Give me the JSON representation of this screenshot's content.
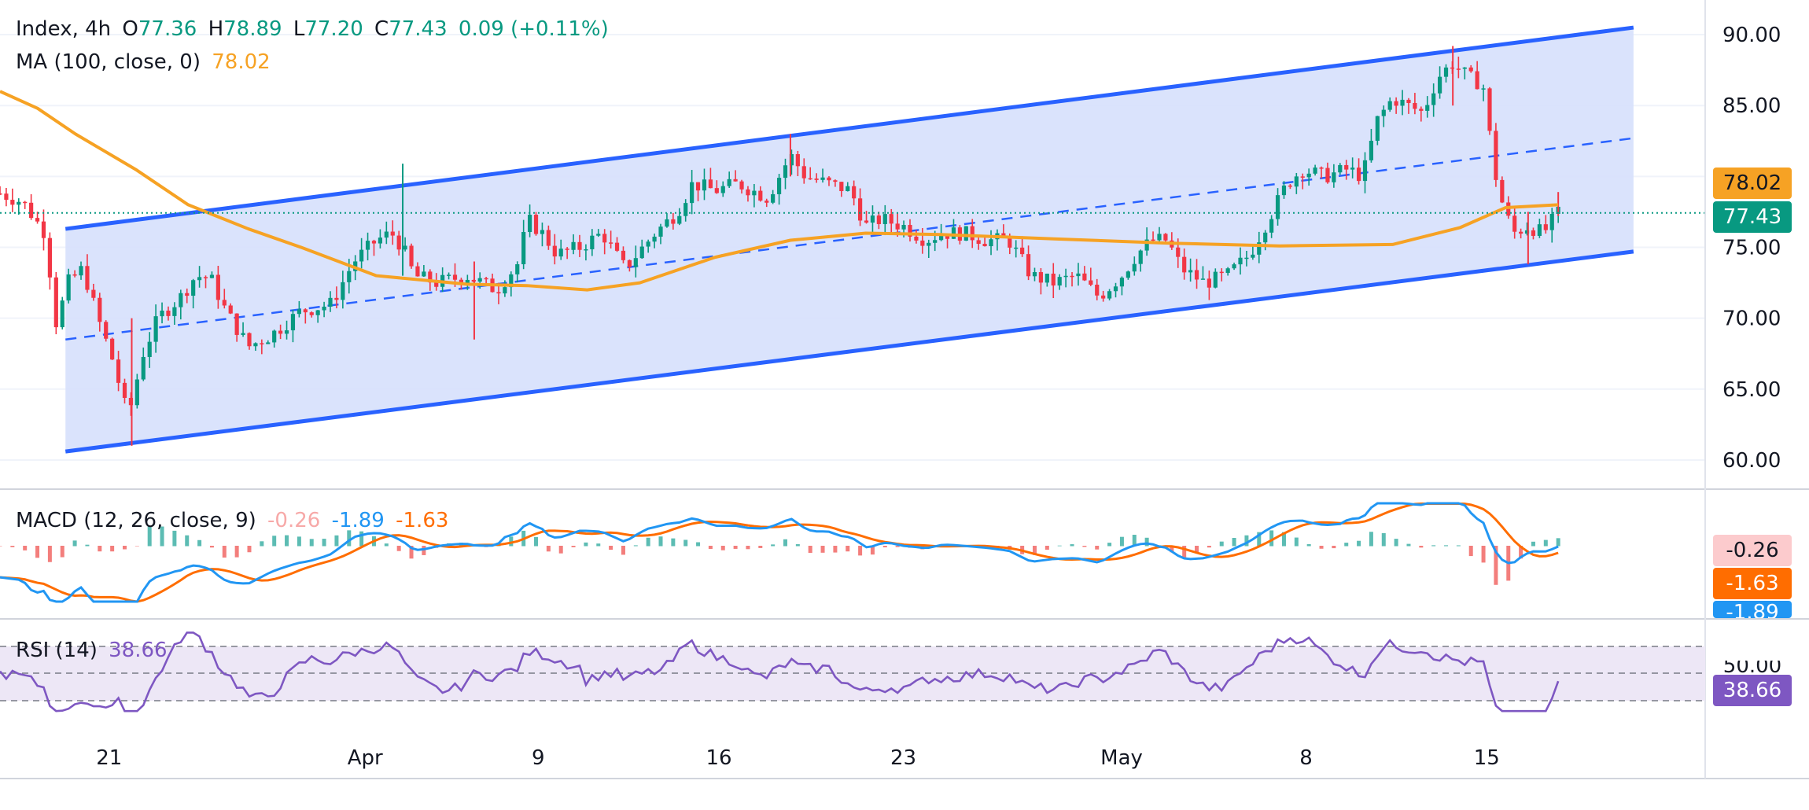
{
  "legend": {
    "symbol": "Index, 4h",
    "open_label": "O",
    "open": "77.36",
    "high_label": "H",
    "high": "78.89",
    "low_label": "L",
    "low": "77.20",
    "close_label": "C",
    "close": "77.43",
    "change": "0.09 (+0.11%)",
    "ma_label": "MA (100, close, 0)",
    "ma_value": "78.02",
    "macd_label": "MACD (12, 26, close, 9)",
    "macd_hist": "-0.26",
    "macd_line": "-1.89",
    "macd_signal": "-1.63",
    "rsi_label": "RSI (14)",
    "rsi_value": "38.66"
  },
  "price_tags": {
    "ma": "78.02",
    "close": "77.43",
    "macd_hist": "-0.26",
    "macd_signal": "-1.63",
    "macd_line": "-1.89",
    "rsi": "38.66",
    "rsi_level": "50.00"
  },
  "colors": {
    "up": "#089981",
    "down": "#f23645",
    "ma": "#f6a224",
    "channel": "#2962ff",
    "channel_fill": "#d6e0fc",
    "macd": "#2196f3",
    "signal": "#ff6d00",
    "rsi": "#7e57c2",
    "rsi_band": "#ede7f6"
  },
  "chart_data": {
    "type": "candlestick",
    "timeframe": "4h",
    "x_tick_labels": [
      "21",
      "Apr",
      "9",
      "16",
      "23",
      "May",
      "8",
      "15"
    ],
    "y_ticks": [
      60,
      65,
      70,
      75,
      80,
      85,
      90
    ],
    "ylim": [
      58.5,
      92
    ],
    "y_tick_labels": [
      "60.00",
      "65.00",
      "70.00",
      "75.00",
      "85.00",
      "90.00"
    ],
    "last": {
      "open": 77.36,
      "high": 78.89,
      "low": 77.2,
      "close": 77.43,
      "change": 0.09,
      "change_pct": 0.11
    },
    "ma100_last": 78.02,
    "ma100_path": [
      [
        0,
        86.0
      ],
      [
        0.05,
        84.8
      ],
      [
        0.1,
        83.0
      ],
      [
        0.18,
        80.5
      ],
      [
        0.25,
        78.0
      ],
      [
        0.33,
        76.3
      ],
      [
        0.4,
        75.0
      ],
      [
        0.5,
        73.0
      ],
      [
        0.62,
        72.4
      ],
      [
        0.7,
        72.3
      ],
      [
        0.78,
        72.0
      ],
      [
        0.85,
        72.5
      ],
      [
        0.95,
        74.3
      ],
      [
        1.05,
        75.5
      ],
      [
        1.15,
        76.0
      ],
      [
        1.25,
        75.9
      ],
      [
        1.4,
        75.6
      ],
      [
        1.55,
        75.3
      ],
      [
        1.7,
        75.1
      ],
      [
        1.85,
        75.2
      ],
      [
        1.94,
        76.4
      ],
      [
        2.0,
        77.8
      ],
      [
        2.07,
        78.0
      ]
    ],
    "channel": {
      "upper": [
        [
          0.087,
          76.3
        ],
        [
          2.17,
          90.5
        ]
      ],
      "middle": [
        [
          0.087,
          68.5
        ],
        [
          2.17,
          82.7
        ]
      ],
      "lower": [
        [
          0.087,
          60.6
        ],
        [
          2.17,
          74.7
        ]
      ]
    },
    "close_path": [
      [
        0.0,
        78.8
      ],
      [
        0.03,
        78.2
      ],
      [
        0.06,
        76.0
      ],
      [
        0.075,
        69.5
      ],
      [
        0.09,
        72.5
      ],
      [
        0.11,
        73.5
      ],
      [
        0.13,
        70.0
      ],
      [
        0.15,
        67.0
      ],
      [
        0.17,
        63.0
      ],
      [
        0.19,
        67.5
      ],
      [
        0.21,
        70.0
      ],
      [
        0.24,
        71.5
      ],
      [
        0.26,
        73.0
      ],
      [
        0.28,
        72.8
      ],
      [
        0.3,
        70.5
      ],
      [
        0.33,
        68.0
      ],
      [
        0.36,
        68.8
      ],
      [
        0.4,
        70.5
      ],
      [
        0.44,
        71.0
      ],
      [
        0.47,
        74.0
      ],
      [
        0.5,
        75.5
      ],
      [
        0.52,
        76.0
      ],
      [
        0.535,
        75.0
      ],
      [
        0.55,
        73.0
      ],
      [
        0.58,
        72.5
      ],
      [
        0.62,
        73.0
      ],
      [
        0.66,
        72.0
      ],
      [
        0.69,
        74.0
      ],
      [
        0.7,
        77.0
      ],
      [
        0.72,
        76.0
      ],
      [
        0.74,
        74.5
      ],
      [
        0.77,
        75.0
      ],
      [
        0.8,
        76.0
      ],
      [
        0.83,
        73.5
      ],
      [
        0.87,
        76.0
      ],
      [
        0.9,
        77.5
      ],
      [
        0.92,
        79.5
      ],
      [
        0.95,
        79.0
      ],
      [
        0.98,
        79.5
      ],
      [
        1.02,
        78.5
      ],
      [
        1.05,
        81.5
      ],
      [
        1.07,
        80.0
      ],
      [
        1.1,
        79.5
      ],
      [
        1.13,
        79.0
      ],
      [
        1.15,
        76.5
      ],
      [
        1.17,
        77.0
      ],
      [
        1.2,
        76.5
      ],
      [
        1.23,
        75.5
      ],
      [
        1.25,
        76.0
      ],
      [
        1.28,
        76.0
      ],
      [
        1.31,
        75.5
      ],
      [
        1.34,
        75.5
      ],
      [
        1.37,
        73.0
      ],
      [
        1.4,
        72.5
      ],
      [
        1.43,
        73.0
      ],
      [
        1.46,
        71.5
      ],
      [
        1.49,
        73.0
      ],
      [
        1.51,
        74.5
      ],
      [
        1.53,
        75.5
      ],
      [
        1.55,
        75.5
      ],
      [
        1.57,
        73.5
      ],
      [
        1.6,
        72.5
      ],
      [
        1.63,
        73.0
      ],
      [
        1.66,
        74.5
      ],
      [
        1.69,
        77.5
      ],
      [
        1.71,
        79.5
      ],
      [
        1.73,
        80.5
      ],
      [
        1.76,
        80.0
      ],
      [
        1.79,
        80.5
      ],
      [
        1.81,
        80.0
      ],
      [
        1.83,
        84.0
      ],
      [
        1.85,
        85.5
      ],
      [
        1.87,
        85.0
      ],
      [
        1.89,
        84.5
      ],
      [
        1.91,
        87.0
      ],
      [
        1.93,
        88.0
      ],
      [
        1.95,
        87.0
      ],
      [
        1.97,
        86.5
      ],
      [
        1.98,
        82.5
      ],
      [
        1.99,
        79.0
      ],
      [
        2.01,
        76.0
      ],
      [
        2.03,
        76.5
      ],
      [
        2.05,
        76.0
      ],
      [
        2.07,
        77.4
      ]
    ],
    "spikes": [
      [
        0.535,
        80.9,
        73.0
      ],
      [
        0.63,
        74.0,
        68.5
      ],
      [
        0.175,
        70.0,
        61.0
      ],
      [
        1.05,
        83.0,
        80.0
      ],
      [
        1.93,
        89.2,
        85.0
      ],
      [
        2.03,
        77.5,
        73.8
      ],
      [
        2.07,
        78.9,
        77.2
      ]
    ],
    "macd": {
      "params": "12, 26, close, 9",
      "histogram_last": -0.26,
      "macd_last": -1.89,
      "signal_last": -1.63
    },
    "rsi": {
      "period": 14,
      "last": 38.66,
      "levels": [
        70,
        50,
        30
      ]
    }
  }
}
